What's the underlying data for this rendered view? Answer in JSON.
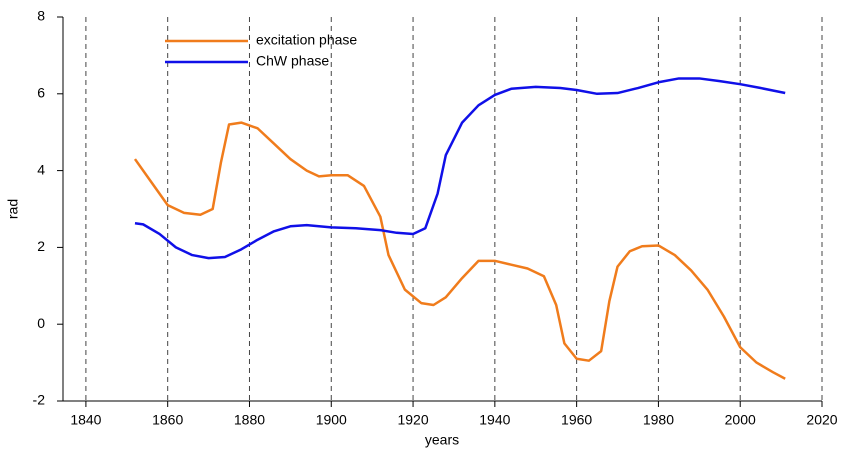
{
  "chart_data": {
    "type": "line",
    "xlabel": "years",
    "ylabel": "rad",
    "xlim": [
      1834.4,
      2020
    ],
    "ylim": [
      -2,
      8
    ],
    "xticks": [
      1840,
      1860,
      1880,
      1900,
      1920,
      1940,
      1960,
      1980,
      2000,
      2020
    ],
    "yticks": [
      -2,
      0,
      2,
      4,
      6,
      8
    ],
    "grid": true,
    "legend": "upper left",
    "series": [
      {
        "name": "excitation phase",
        "color": "#f07c1c",
        "x": [
          1852,
          1856,
          1860,
          1864,
          1868,
          1871,
          1873,
          1875,
          1878,
          1882,
          1886,
          1890,
          1894,
          1897,
          1900,
          1904,
          1908,
          1912,
          1914,
          1918,
          1922,
          1925,
          1928,
          1932,
          1936,
          1940,
          1944,
          1948,
          1952,
          1955,
          1957,
          1960,
          1963,
          1966,
          1968,
          1970,
          1973,
          1976,
          1980,
          1984,
          1988,
          1992,
          1996,
          2000,
          2004,
          2008,
          2011
        ],
        "values": [
          4.3,
          3.7,
          3.1,
          2.9,
          2.85,
          3.0,
          4.2,
          5.2,
          5.25,
          5.1,
          4.7,
          4.3,
          4.0,
          3.85,
          3.88,
          3.88,
          3.6,
          2.8,
          1.8,
          0.9,
          0.55,
          0.5,
          0.7,
          1.2,
          1.65,
          1.65,
          1.55,
          1.45,
          1.25,
          0.5,
          -0.5,
          -0.9,
          -0.95,
          -0.7,
          0.6,
          1.5,
          1.9,
          2.03,
          2.05,
          1.8,
          1.4,
          0.9,
          0.2,
          -0.6,
          -1.0,
          -1.25,
          -1.42
        ]
      },
      {
        "name": "ChW phase",
        "color": "#1010e8",
        "x": [
          1852,
          1854,
          1858,
          1862,
          1866,
          1870,
          1874,
          1878,
          1882,
          1886,
          1890,
          1894,
          1900,
          1906,
          1912,
          1916,
          1920,
          1923,
          1926,
          1928,
          1932,
          1936,
          1940,
          1944,
          1950,
          1956,
          1960,
          1965,
          1970,
          1975,
          1980,
          1985,
          1990,
          1995,
          2000,
          2005,
          2011
        ],
        "values": [
          2.63,
          2.6,
          2.35,
          2.0,
          1.8,
          1.72,
          1.75,
          1.95,
          2.2,
          2.42,
          2.55,
          2.58,
          2.52,
          2.5,
          2.45,
          2.38,
          2.35,
          2.5,
          3.4,
          4.4,
          5.25,
          5.7,
          5.97,
          6.13,
          6.18,
          6.15,
          6.1,
          6.0,
          6.02,
          6.15,
          6.3,
          6.4,
          6.4,
          6.33,
          6.25,
          6.15,
          6.02
        ]
      }
    ]
  }
}
